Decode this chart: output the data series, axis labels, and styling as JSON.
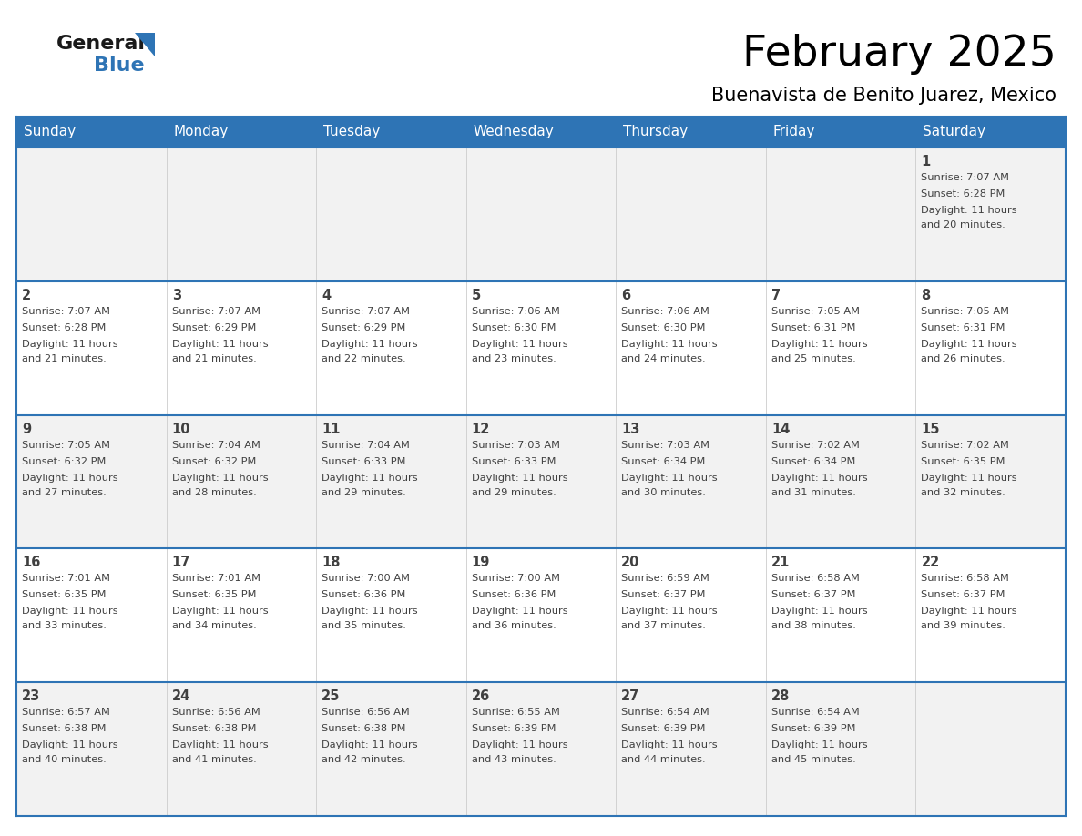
{
  "title": "February 2025",
  "subtitle": "Buenavista de Benito Juarez, Mexico",
  "header_bg": "#2E74B5",
  "header_text_color": "#FFFFFF",
  "day_names": [
    "Sunday",
    "Monday",
    "Tuesday",
    "Wednesday",
    "Thursday",
    "Friday",
    "Saturday"
  ],
  "alt_row_bg": "#F2F2F2",
  "white_bg": "#FFFFFF",
  "border_color": "#2E74B5",
  "cell_border_color": "#AAAAAA",
  "text_color": "#404040",
  "logo_general_color": "#1a1a1a",
  "logo_blue_color": "#2E74B5",
  "calendar": [
    [
      null,
      null,
      null,
      null,
      null,
      null,
      {
        "day": 1,
        "sunrise": "7:07 AM",
        "sunset": "6:28 PM",
        "daylight": "11 hours and 20 minutes."
      }
    ],
    [
      {
        "day": 2,
        "sunrise": "7:07 AM",
        "sunset": "6:28 PM",
        "daylight": "11 hours and 21 minutes."
      },
      {
        "day": 3,
        "sunrise": "7:07 AM",
        "sunset": "6:29 PM",
        "daylight": "11 hours and 21 minutes."
      },
      {
        "day": 4,
        "sunrise": "7:07 AM",
        "sunset": "6:29 PM",
        "daylight": "11 hours and 22 minutes."
      },
      {
        "day": 5,
        "sunrise": "7:06 AM",
        "sunset": "6:30 PM",
        "daylight": "11 hours and 23 minutes."
      },
      {
        "day": 6,
        "sunrise": "7:06 AM",
        "sunset": "6:30 PM",
        "daylight": "11 hours and 24 minutes."
      },
      {
        "day": 7,
        "sunrise": "7:05 AM",
        "sunset": "6:31 PM",
        "daylight": "11 hours and 25 minutes."
      },
      {
        "day": 8,
        "sunrise": "7:05 AM",
        "sunset": "6:31 PM",
        "daylight": "11 hours and 26 minutes."
      }
    ],
    [
      {
        "day": 9,
        "sunrise": "7:05 AM",
        "sunset": "6:32 PM",
        "daylight": "11 hours and 27 minutes."
      },
      {
        "day": 10,
        "sunrise": "7:04 AM",
        "sunset": "6:32 PM",
        "daylight": "11 hours and 28 minutes."
      },
      {
        "day": 11,
        "sunrise": "7:04 AM",
        "sunset": "6:33 PM",
        "daylight": "11 hours and 29 minutes."
      },
      {
        "day": 12,
        "sunrise": "7:03 AM",
        "sunset": "6:33 PM",
        "daylight": "11 hours and 29 minutes."
      },
      {
        "day": 13,
        "sunrise": "7:03 AM",
        "sunset": "6:34 PM",
        "daylight": "11 hours and 30 minutes."
      },
      {
        "day": 14,
        "sunrise": "7:02 AM",
        "sunset": "6:34 PM",
        "daylight": "11 hours and 31 minutes."
      },
      {
        "day": 15,
        "sunrise": "7:02 AM",
        "sunset": "6:35 PM",
        "daylight": "11 hours and 32 minutes."
      }
    ],
    [
      {
        "day": 16,
        "sunrise": "7:01 AM",
        "sunset": "6:35 PM",
        "daylight": "11 hours and 33 minutes."
      },
      {
        "day": 17,
        "sunrise": "7:01 AM",
        "sunset": "6:35 PM",
        "daylight": "11 hours and 34 minutes."
      },
      {
        "day": 18,
        "sunrise": "7:00 AM",
        "sunset": "6:36 PM",
        "daylight": "11 hours and 35 minutes."
      },
      {
        "day": 19,
        "sunrise": "7:00 AM",
        "sunset": "6:36 PM",
        "daylight": "11 hours and 36 minutes."
      },
      {
        "day": 20,
        "sunrise": "6:59 AM",
        "sunset": "6:37 PM",
        "daylight": "11 hours and 37 minutes."
      },
      {
        "day": 21,
        "sunrise": "6:58 AM",
        "sunset": "6:37 PM",
        "daylight": "11 hours and 38 minutes."
      },
      {
        "day": 22,
        "sunrise": "6:58 AM",
        "sunset": "6:37 PM",
        "daylight": "11 hours and 39 minutes."
      }
    ],
    [
      {
        "day": 23,
        "sunrise": "6:57 AM",
        "sunset": "6:38 PM",
        "daylight": "11 hours and 40 minutes."
      },
      {
        "day": 24,
        "sunrise": "6:56 AM",
        "sunset": "6:38 PM",
        "daylight": "11 hours and 41 minutes."
      },
      {
        "day": 25,
        "sunrise": "6:56 AM",
        "sunset": "6:38 PM",
        "daylight": "11 hours and 42 minutes."
      },
      {
        "day": 26,
        "sunrise": "6:55 AM",
        "sunset": "6:39 PM",
        "daylight": "11 hours and 43 minutes."
      },
      {
        "day": 27,
        "sunrise": "6:54 AM",
        "sunset": "6:39 PM",
        "daylight": "11 hours and 44 minutes."
      },
      {
        "day": 28,
        "sunrise": "6:54 AM",
        "sunset": "6:39 PM",
        "daylight": "11 hours and 45 minutes."
      },
      null
    ]
  ],
  "fig_width": 11.88,
  "fig_height": 9.18,
  "dpi": 100
}
